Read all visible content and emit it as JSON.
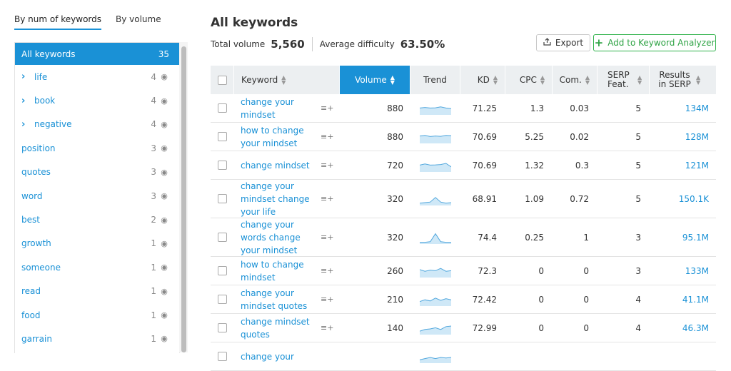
{
  "sidebar": {
    "tabs": [
      "By num of keywords",
      "By volume"
    ],
    "items": [
      {
        "label": "All keywords",
        "count": "35",
        "active": true,
        "expandable": false
      },
      {
        "label": "life",
        "count": "4",
        "expandable": true
      },
      {
        "label": "book",
        "count": "4",
        "expandable": true
      },
      {
        "label": "negative",
        "count": "4",
        "expandable": true
      },
      {
        "label": "position",
        "count": "3",
        "expandable": false
      },
      {
        "label": "quotes",
        "count": "3",
        "expandable": false
      },
      {
        "label": "word",
        "count": "3",
        "expandable": false
      },
      {
        "label": "best",
        "count": "2",
        "expandable": false
      },
      {
        "label": "growth",
        "count": "1",
        "expandable": false
      },
      {
        "label": "someone",
        "count": "1",
        "expandable": false
      },
      {
        "label": "read",
        "count": "1",
        "expandable": false
      },
      {
        "label": "food",
        "count": "1",
        "expandable": false
      },
      {
        "label": "garrain",
        "count": "1",
        "expandable": false
      }
    ]
  },
  "header": {
    "title": "All keywords",
    "total_volume_label": "Total volume",
    "total_volume": "5,560",
    "avg_difficulty_label": "Average difficulty",
    "avg_difficulty": "63.50%",
    "export_label": "Export",
    "add_label": "Add to Keyword Analyzer"
  },
  "table": {
    "columns": [
      "Keyword",
      "Volume",
      "Trend",
      "KD",
      "CPC",
      "Com.",
      "SERP Feat.",
      "Results in SERP"
    ],
    "rows": [
      {
        "keyword": [
          "change your",
          "mindset"
        ],
        "volume": "880",
        "trend": [
          0.6,
          0.65,
          0.6,
          0.62,
          0.7,
          0.6,
          0.55
        ],
        "kd": "71.25",
        "cpc": "1.3",
        "com": "0.03",
        "serp": "5",
        "results": "134M"
      },
      {
        "keyword": [
          "how to change",
          "your mindset"
        ],
        "volume": "880",
        "trend": [
          0.65,
          0.7,
          0.6,
          0.65,
          0.62,
          0.7,
          0.68
        ],
        "kd": "70.69",
        "cpc": "5.25",
        "com": "0.02",
        "serp": "5",
        "results": "128M"
      },
      {
        "keyword": [
          "change mindset"
        ],
        "volume": "720",
        "trend": [
          0.6,
          0.7,
          0.6,
          0.62,
          0.65,
          0.75,
          0.45
        ],
        "kd": "70.69",
        "cpc": "1.32",
        "com": "0.3",
        "serp": "5",
        "results": "121M"
      },
      {
        "keyword": [
          "change your",
          "mindset change",
          "your life"
        ],
        "volume": "320",
        "trend": [
          0.2,
          0.25,
          0.3,
          0.7,
          0.3,
          0.2,
          0.25
        ],
        "kd": "68.91",
        "cpc": "1.09",
        "com": "0.72",
        "serp": "5",
        "results": "150.1K"
      },
      {
        "keyword": [
          "change your",
          "words change",
          "your mindset"
        ],
        "volume": "320",
        "trend": [
          0.15,
          0.15,
          0.2,
          0.9,
          0.2,
          0.15,
          0.15
        ],
        "kd": "74.4",
        "cpc": "0.25",
        "com": "1",
        "serp": "3",
        "results": "95.1M"
      },
      {
        "keyword": [
          "how to change",
          "mindset"
        ],
        "volume": "260",
        "trend": [
          0.7,
          0.55,
          0.65,
          0.6,
          0.8,
          0.55,
          0.6
        ],
        "kd": "72.3",
        "cpc": "0",
        "com": "0",
        "serp": "3",
        "results": "133M"
      },
      {
        "keyword": [
          "change your",
          "mindset quotes"
        ],
        "volume": "210",
        "trend": [
          0.4,
          0.55,
          0.45,
          0.7,
          0.5,
          0.65,
          0.55
        ],
        "kd": "72.42",
        "cpc": "0",
        "com": "0",
        "serp": "4",
        "results": "41.1M"
      },
      {
        "keyword": [
          "change mindset",
          "quotes"
        ],
        "volume": "140",
        "trend": [
          0.3,
          0.45,
          0.5,
          0.6,
          0.45,
          0.7,
          0.75
        ],
        "kd": "72.99",
        "cpc": "0",
        "com": "0",
        "serp": "4",
        "results": "46.3M"
      },
      {
        "keyword": [
          "change your"
        ],
        "volume": "",
        "trend": [
          0.3,
          0.4,
          0.5,
          0.4,
          0.5,
          0.45,
          0.5
        ],
        "kd": "",
        "cpc": "",
        "com": "",
        "serp": "",
        "results": ""
      }
    ]
  },
  "colors": {
    "accent": "#1a91d6",
    "green": "#2fb24a",
    "trend_fill": "#cfe8f7",
    "trend_line": "#52a8de"
  }
}
